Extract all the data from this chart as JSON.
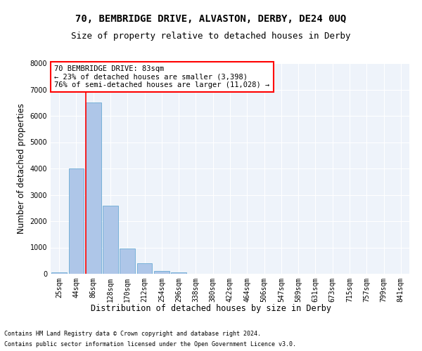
{
  "title": "70, BEMBRIDGE DRIVE, ALVASTON, DERBY, DE24 0UQ",
  "subtitle": "Size of property relative to detached houses in Derby",
  "xlabel": "Distribution of detached houses by size in Derby",
  "ylabel": "Number of detached properties",
  "footnote1": "Contains HM Land Registry data © Crown copyright and database right 2024.",
  "footnote2": "Contains public sector information licensed under the Open Government Licence v3.0.",
  "bar_labels": [
    "25sqm",
    "44sqm",
    "86sqm",
    "128sqm",
    "170sqm",
    "212sqm",
    "254sqm",
    "296sqm",
    "338sqm",
    "380sqm",
    "422sqm",
    "464sqm",
    "506sqm",
    "547sqm",
    "589sqm",
    "631sqm",
    "673sqm",
    "715sqm",
    "757sqm",
    "799sqm",
    "841sqm"
  ],
  "bar_values": [
    50,
    4000,
    6500,
    2600,
    950,
    400,
    120,
    50,
    10,
    2,
    0,
    0,
    0,
    0,
    0,
    0,
    0,
    0,
    0,
    0,
    0
  ],
  "bar_color": "#aec6e8",
  "bar_edge_color": "#6aaad4",
  "annotation_text": "70 BEMBRIDGE DRIVE: 83sqm\n← 23% of detached houses are smaller (3,398)\n76% of semi-detached houses are larger (11,028) →",
  "annotation_box_color": "white",
  "annotation_box_edge_color": "red",
  "vline_color": "red",
  "ylim": [
    0,
    8000
  ],
  "yticks": [
    0,
    1000,
    2000,
    3000,
    4000,
    5000,
    6000,
    7000,
    8000
  ],
  "bg_color": "#eef3fa",
  "grid_color": "white",
  "title_fontsize": 10,
  "subtitle_fontsize": 9,
  "axis_label_fontsize": 8.5,
  "tick_fontsize": 7,
  "annotation_fontsize": 7.5,
  "footnote_fontsize": 6
}
